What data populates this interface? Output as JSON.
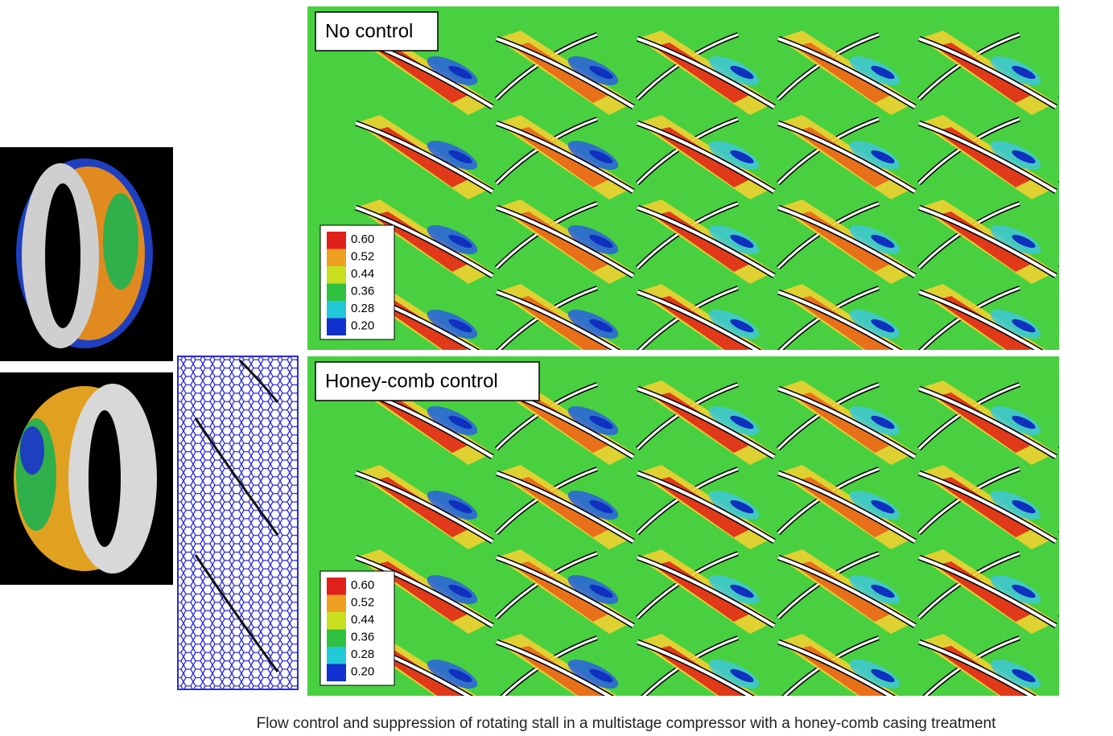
{
  "panels": [
    {
      "label": "No control",
      "colorbar": [
        "0.60",
        "0.52",
        "0.44",
        "0.36",
        "0.28",
        "0.20"
      ]
    },
    {
      "label": "Honey-comb control",
      "colorbar": [
        "0.60",
        "0.52",
        "0.44",
        "0.36",
        "0.28",
        "0.20"
      ]
    }
  ],
  "caption": "Flow control and suppression of rotating stall in a multistage compressor with a honey-comb casing treatment"
}
